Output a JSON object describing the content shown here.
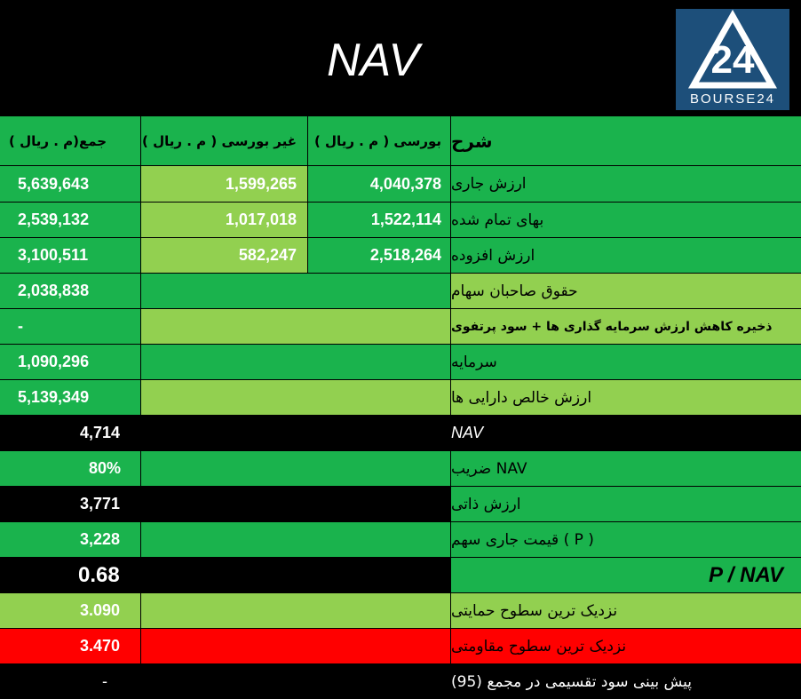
{
  "title": "NAV",
  "logo": {
    "text": "BOURSE24",
    "mark": "24"
  },
  "colors": {
    "dark_green": "#1ab34d",
    "light_green": "#92d050",
    "black": "#000000",
    "red": "#ff0000"
  },
  "header_row": {
    "total": "( م . ریال)جمع",
    "non_bourse": "غیر بورسی ( م . ریال )",
    "bourse": "بورسی ( م . ریال )",
    "desc": "شرح"
  },
  "rows": [
    {
      "total": "5,639,643",
      "non_bourse": "1,599,265",
      "bourse": "4,040,378",
      "label": "ارزش جاری"
    },
    {
      "total": "2,539,132",
      "non_bourse": "1,017,018",
      "bourse": "1,522,114",
      "label": "بهای تمام شده"
    },
    {
      "total": "3,100,511",
      "non_bourse": "582,247",
      "bourse": "2,518,264",
      "label": "ارزش افزوده"
    },
    {
      "total": "2,038,838",
      "label": "حقوق صاحبان سهام"
    },
    {
      "total": "-",
      "label": "ذخیره کاهش ارزش سرمایه گذاری ها + سود پرتفوی"
    },
    {
      "total": "1,090,296",
      "label": "سرمایه"
    },
    {
      "total": "5,139,349",
      "label": "ارزش خالص دارایی ها"
    },
    {
      "total": "4,714",
      "label": "NAV"
    },
    {
      "total": "80%",
      "label": "NAV ضریب"
    },
    {
      "total": "3,771",
      "label": "ارزش ذاتی"
    },
    {
      "total": "3,228",
      "label": "( P ) قیمت جاری سهم"
    },
    {
      "total": "0.68",
      "label": "P / NAV"
    },
    {
      "total": "3.090",
      "label": "نزدیک ترین سطوح حمایتی"
    },
    {
      "total": "3.470",
      "label": "نزدیک ترین سطوح مقاومتی"
    },
    {
      "total": "-",
      "label": "پیش بینی سود تقسیمی در مجمع (95)"
    }
  ]
}
